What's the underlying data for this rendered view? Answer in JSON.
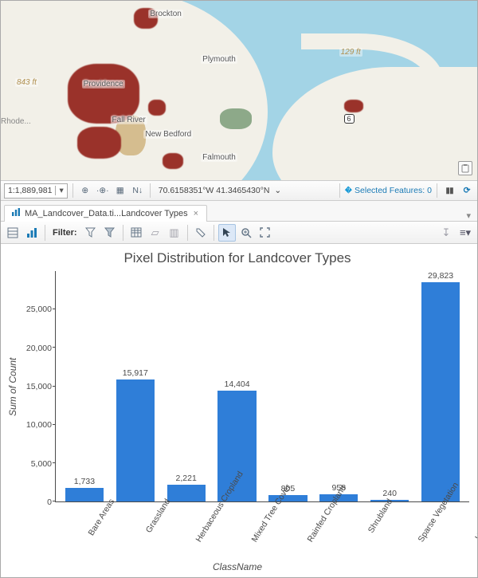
{
  "map": {
    "labels": {
      "brockton": "Brockton",
      "plymouth": "Plymouth",
      "providence": "Providence",
      "fall_river": "Fall River",
      "new_bedford": "New Bedford",
      "falmouth": "Falmouth",
      "rhode": "Rhode...",
      "elev_left": "843 ft",
      "elev_right": "129 ft",
      "route6": "6"
    }
  },
  "status_bar": {
    "scale": "1:1,889,981",
    "coordinates": "70.6158351°W 41.3465430°N",
    "selected_label": "Selected Features:",
    "selected_count": "0"
  },
  "tabs": {
    "active_label": "MA_Landcover_Data.ti...Landcover Types"
  },
  "chart_toolbar": {
    "filter_label": "Filter:"
  },
  "chart": {
    "type": "bar",
    "title": "Pixel Distribution for Landcover Types",
    "title_fontsize": 17,
    "y_axis_title": "Sum of Count",
    "x_axis_title": "ClassName",
    "label_fontsize": 12,
    "bar_color": "#2f7ed8",
    "text_color": "#4a4a4a",
    "background_color": "#ffffff",
    "ylim": [
      0,
      30000
    ],
    "y_ticks": [
      "25,000",
      "20,000",
      "15,000",
      "10,000",
      "5,000",
      "0"
    ],
    "y_tick_values": [
      25000,
      20000,
      15000,
      10000,
      5000,
      0
    ],
    "categories": [
      "Bare Areas",
      "Grassland",
      "Herbaceous Cropland",
      "Mixed Tree Cover",
      "Rainfed Cropland",
      "Shrubland",
      "Sparse Vegetation",
      "Urban Areas"
    ],
    "values": [
      1733,
      15917,
      2221,
      14404,
      805,
      958,
      240,
      29823
    ],
    "value_labels": [
      "1,733",
      "15,917",
      "2,221",
      "14,404",
      "805",
      "958",
      "240",
      "29,823"
    ],
    "bar_width": 0.86,
    "x_label_rotation": -58
  }
}
